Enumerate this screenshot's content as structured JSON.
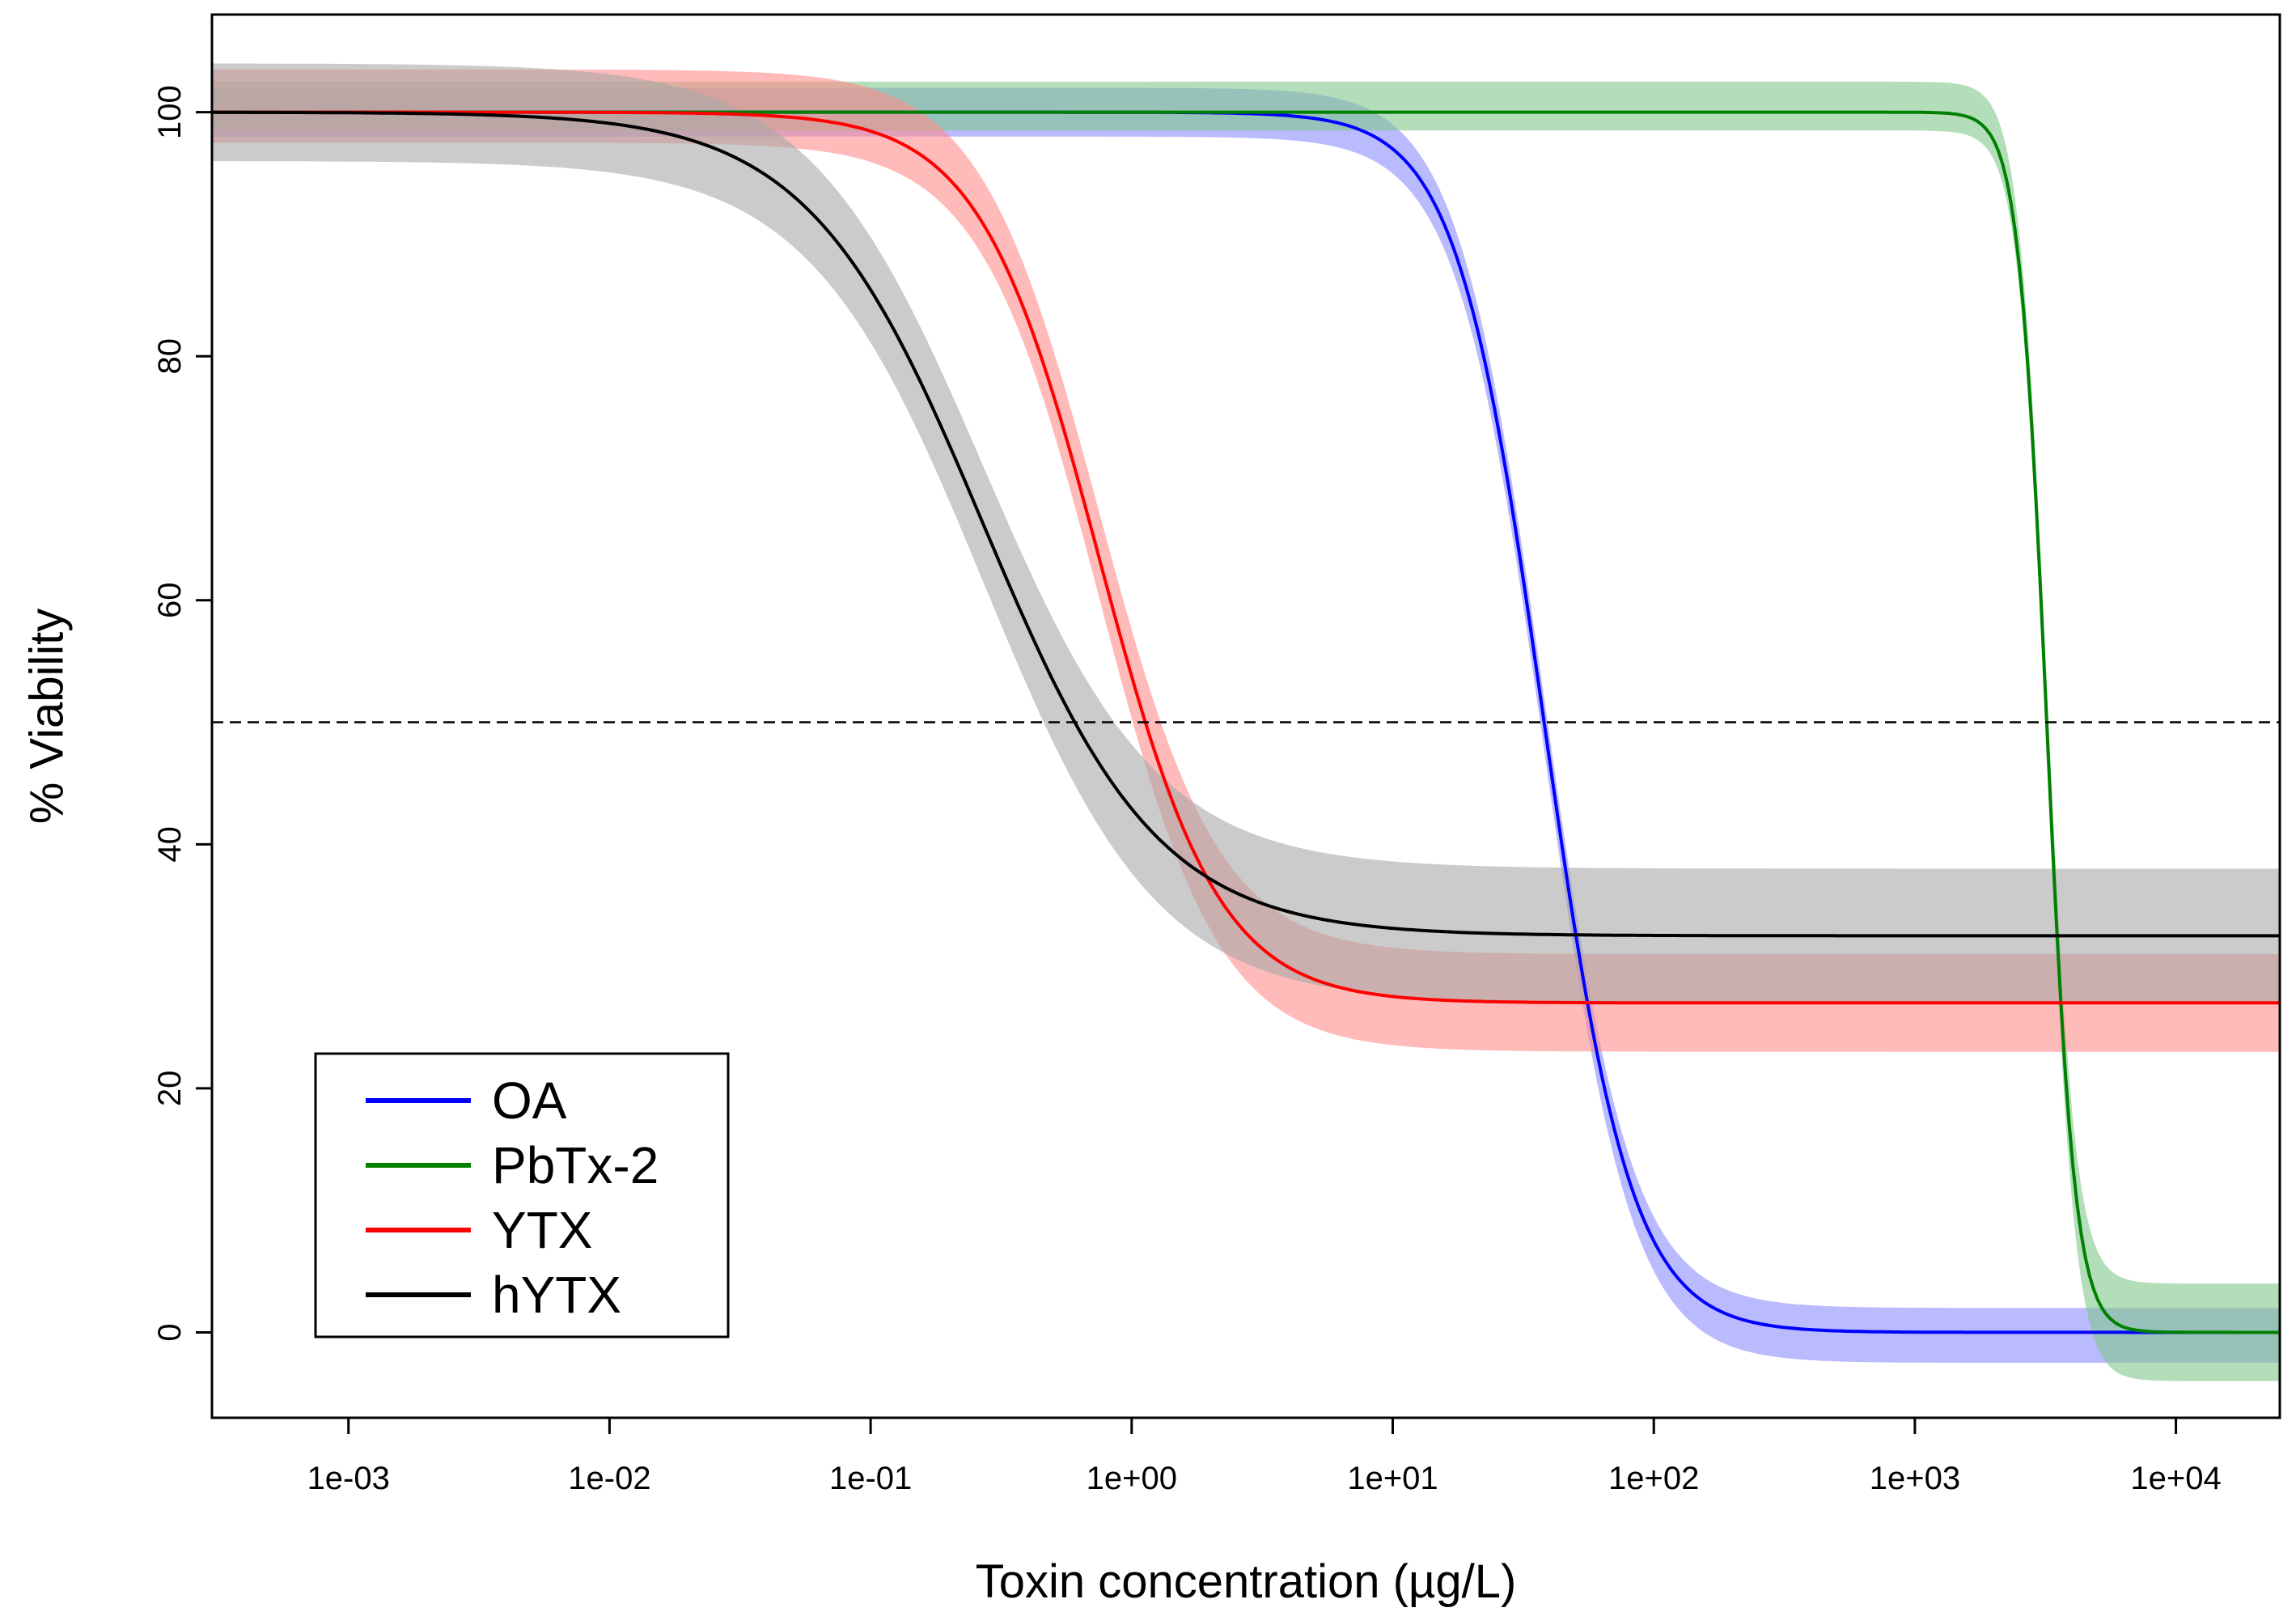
{
  "chart_data": {
    "type": "line",
    "title": "",
    "xlabel": "Toxin concentration (µg/L)",
    "ylabel": "% Viability",
    "x_scale": "log10",
    "xlim": [
      0.0003,
      25000
    ],
    "ylim": [
      -7,
      108
    ],
    "x_ticks": [
      {
        "value": 0.001,
        "label": "1e-03"
      },
      {
        "value": 0.01,
        "label": "1e-02"
      },
      {
        "value": 0.1,
        "label": "1e-01"
      },
      {
        "value": 1,
        "label": "1e+00"
      },
      {
        "value": 10,
        "label": "1e+01"
      },
      {
        "value": 100,
        "label": "1e+02"
      },
      {
        "value": 1000,
        "label": "1e+03"
      },
      {
        "value": 10000,
        "label": "1e+04"
      }
    ],
    "y_ticks": [
      {
        "value": 0,
        "label": "0"
      },
      {
        "value": 20,
        "label": "20"
      },
      {
        "value": 40,
        "label": "40"
      },
      {
        "value": 60,
        "label": "60"
      },
      {
        "value": 80,
        "label": "80"
      },
      {
        "value": 100,
        "label": "100"
      }
    ],
    "reference_line": {
      "y": 50,
      "style": "dashed"
    },
    "grid": false,
    "legend": {
      "position": "bottom-left"
    },
    "series": [
      {
        "name": "OA",
        "color": "#0000ff",
        "band_color": "#8c8cff",
        "model": {
          "top": 100,
          "bottom": 0,
          "ec50": 38,
          "hill": 2.6
        },
        "band": {
          "top_upper": 102,
          "top_lower": 98,
          "bottom_upper": 2,
          "bottom_lower": -2.5
        }
      },
      {
        "name": "PbTx-2",
        "color": "#008000",
        "band_color": "#80c88a",
        "model": {
          "top": 100,
          "bottom": 0,
          "ec50": 3200,
          "hill": 8
        },
        "band": {
          "top_upper": 102.5,
          "top_lower": 98.5,
          "bottom_upper": 4,
          "bottom_lower": -4
        }
      },
      {
        "name": "YTX",
        "color": "#ff0000",
        "band_color": "#ff8c8c",
        "model": {
          "top": 100,
          "bottom": 27,
          "ec50": 0.75,
          "hill": 1.9
        },
        "band": {
          "top_upper": 103.5,
          "top_lower": 97.5,
          "bottom_upper": 31,
          "bottom_lower": 23
        }
      },
      {
        "name": "hYTX",
        "color": "#000000",
        "band_color": "#a8a8a8",
        "model": {
          "top": 100,
          "bottom": 32.5,
          "ec50": 0.27,
          "hill": 1.3
        },
        "band": {
          "top_upper": 104,
          "top_lower": 96,
          "bottom_upper": 38,
          "bottom_lower": 27
        }
      }
    ]
  }
}
